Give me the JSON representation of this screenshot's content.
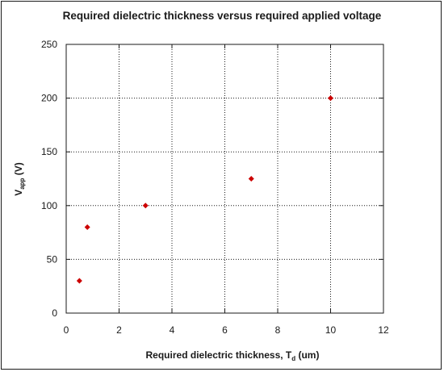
{
  "chart_data": {
    "type": "scatter",
    "title": "Required dielectric thickness versus required applied voltage",
    "xlabel": {
      "main": "Required dielectric thickness, T",
      "sub": "d",
      "suffix": " (um)"
    },
    "ylabel": {
      "main": "V",
      "sub": "app",
      "suffix": " (V)"
    },
    "xlim": [
      0,
      12
    ],
    "ylim": [
      0,
      250
    ],
    "xticks": [
      0,
      2,
      4,
      6,
      8,
      10,
      12
    ],
    "yticks": [
      0,
      50,
      100,
      150,
      200,
      250
    ],
    "grid": true,
    "grid_style": "dotted",
    "marker": "diamond",
    "marker_color": "#cc0000",
    "points": [
      {
        "x": 0.5,
        "y": 30
      },
      {
        "x": 0.8,
        "y": 80
      },
      {
        "x": 3,
        "y": 100
      },
      {
        "x": 7,
        "y": 125
      },
      {
        "x": 10,
        "y": 200
      }
    ]
  }
}
